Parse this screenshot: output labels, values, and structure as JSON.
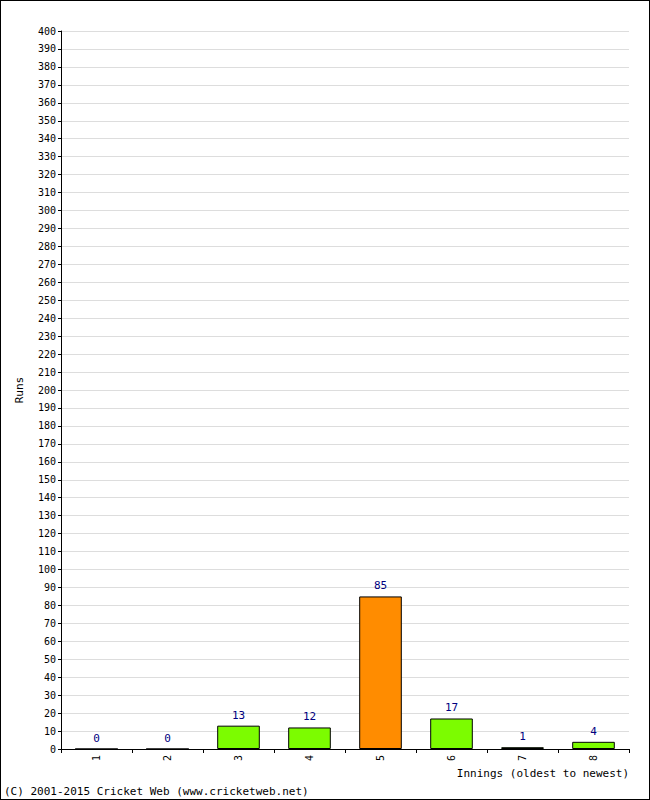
{
  "chart_data": {
    "type": "bar",
    "x_label": "Innings (oldest to newest)",
    "y_label": "Runs",
    "annotations": [
      "(C) 2001-2015 Cricket Web (www.cricketweb.net)"
    ],
    "categories": [
      "1",
      "2",
      "3",
      "4",
      "5",
      "6",
      "7",
      "8"
    ],
    "values": [
      0,
      0,
      13,
      12,
      85,
      17,
      1,
      4
    ],
    "colors": [
      "#7cfc00",
      "#7cfc00",
      "#7cfc00",
      "#7cfc00",
      "#ff8c00",
      "#7cfc00",
      "#7cfc00",
      "#7cfc00"
    ],
    "ylim": [
      0,
      400
    ],
    "yticks": [
      0,
      10,
      20,
      30,
      40,
      50,
      60,
      70,
      80,
      90,
      100,
      110,
      120,
      130,
      140,
      150,
      160,
      170,
      180,
      190,
      200,
      210,
      220,
      230,
      240,
      250,
      260,
      270,
      280,
      290,
      300,
      310,
      320,
      330,
      340,
      350,
      360,
      370,
      380,
      390,
      400
    ],
    "grid": true,
    "data_labels": true
  }
}
